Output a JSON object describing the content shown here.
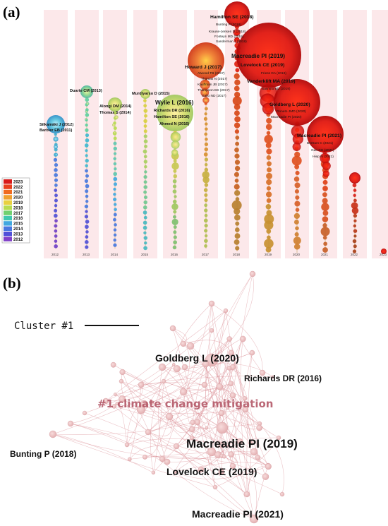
{
  "panels": {
    "a": "(a)",
    "b": "(b)"
  },
  "timeline": {
    "years": [
      "2012",
      "2013",
      "2014",
      "2015",
      "2016",
      "2017",
      "2018",
      "2019",
      "2020",
      "2021",
      "2022",
      "2023"
    ],
    "legend": [
      "2023",
      "2022",
      "2021",
      "2020",
      "2019",
      "2018",
      "2017",
      "2016",
      "2015",
      "2014",
      "2013",
      "2012"
    ],
    "legend_colors": [
      "#d81a1a",
      "#e8401e",
      "#f06a20",
      "#f0a030",
      "#e8d040",
      "#b8dc50",
      "#70d070",
      "#40c8b0",
      "#40a8e0",
      "#4878e0",
      "#5050d8",
      "#8040c8"
    ],
    "columns": [
      {
        "year": "2012",
        "labels": [
          {
            "text": "Silkamäki J (2012)",
            "size": "small"
          },
          {
            "text": "Barbier EB (2011)",
            "size": "small"
          }
        ]
      },
      {
        "year": "2013",
        "labels": [
          {
            "text": "Duarte CM (2013)",
            "size": "small"
          }
        ]
      },
      {
        "year": "2014",
        "labels": [
          {
            "text": "Alongi DM (2014)",
            "size": "small"
          },
          {
            "text": "Thomas S (2014)",
            "size": "small"
          }
        ]
      },
      {
        "year": "2015",
        "labels": [
          {
            "text": "Murdiyarso D (2015)",
            "size": "small"
          }
        ]
      },
      {
        "year": "2016",
        "labels": [
          {
            "text": "Wylie L (2016)",
            "size": "big"
          },
          {
            "text": "Richards DR (2016)",
            "size": "small"
          },
          {
            "text": "Hamilton SE (2016)",
            "size": "small"
          },
          {
            "text": "Ahmed N (2016)",
            "size": "small"
          }
        ]
      },
      {
        "year": "2017",
        "labels": [
          {
            "text": "Howard J (2017)",
            "size": "mid"
          },
          {
            "text": "Atwood TB (2017)",
            "size": "tiny"
          },
          {
            "text": "Thomas N (2017)",
            "size": "tiny"
          },
          {
            "text": "Kauffman JB (2017)",
            "size": "tiny"
          },
          {
            "text": "Thompson BS (2017)",
            "size": "tiny"
          },
          {
            "text": "Gallo ND (2017)",
            "size": "tiny"
          }
        ]
      },
      {
        "year": "2018",
        "labels": [
          {
            "text": "Hamilton SE (2018)",
            "size": "mid"
          },
          {
            "text": "Bunting P (2018)",
            "size": "tiny"
          },
          {
            "text": "Krause-Jensen D (2018)",
            "size": "tiny"
          },
          {
            "text": "Fonteyn MD (2018)",
            "size": "tiny"
          },
          {
            "text": "Sanderman J (2018)",
            "size": "tiny"
          }
        ]
      },
      {
        "year": "2019",
        "labels": [
          {
            "text": "Macreadie PI (2019)",
            "size": "big"
          },
          {
            "text": "Lovelock CE (2019)",
            "size": "mid"
          },
          {
            "text": "Friess DA (2019)",
            "size": "tiny"
          },
          {
            "text": "Vanderklift MA (2019)",
            "size": "mid"
          },
          {
            "text": "Sasmito SD (2019)",
            "size": "tiny"
          }
        ]
      },
      {
        "year": "2020",
        "labels": [
          {
            "text": "Goldberg L (2020)",
            "size": "mid"
          },
          {
            "text": "Donato JMD (2020)",
            "size": "tiny"
          },
          {
            "text": "Macreadie PI (2020)",
            "size": "tiny"
          }
        ]
      },
      {
        "year": "2021",
        "labels": [
          {
            "text": "Macreadie PI (2021)",
            "size": "mid"
          },
          {
            "text": "Bertram C (2021)",
            "size": "tiny"
          },
          {
            "text": "Gao CH (2021)",
            "size": "tiny"
          },
          {
            "text": "Hiep N (2021)",
            "size": "tiny"
          }
        ]
      }
    ]
  },
  "network": {
    "cluster_tag": "Cluster #1",
    "cluster_name": "#1 climate change mitigation",
    "labels": [
      {
        "text": "Goldberg L (2020)",
        "size": "l"
      },
      {
        "text": "Richards DR (2016)",
        "size": "s"
      },
      {
        "text": "Bunting P (2018)",
        "size": "s"
      },
      {
        "text": "Macreadie PI (2019)",
        "size": "xl"
      },
      {
        "text": "Lovelock CE (2019)",
        "size": "l"
      },
      {
        "text": "Macreadie PI (2021)",
        "size": "l"
      }
    ]
  }
}
